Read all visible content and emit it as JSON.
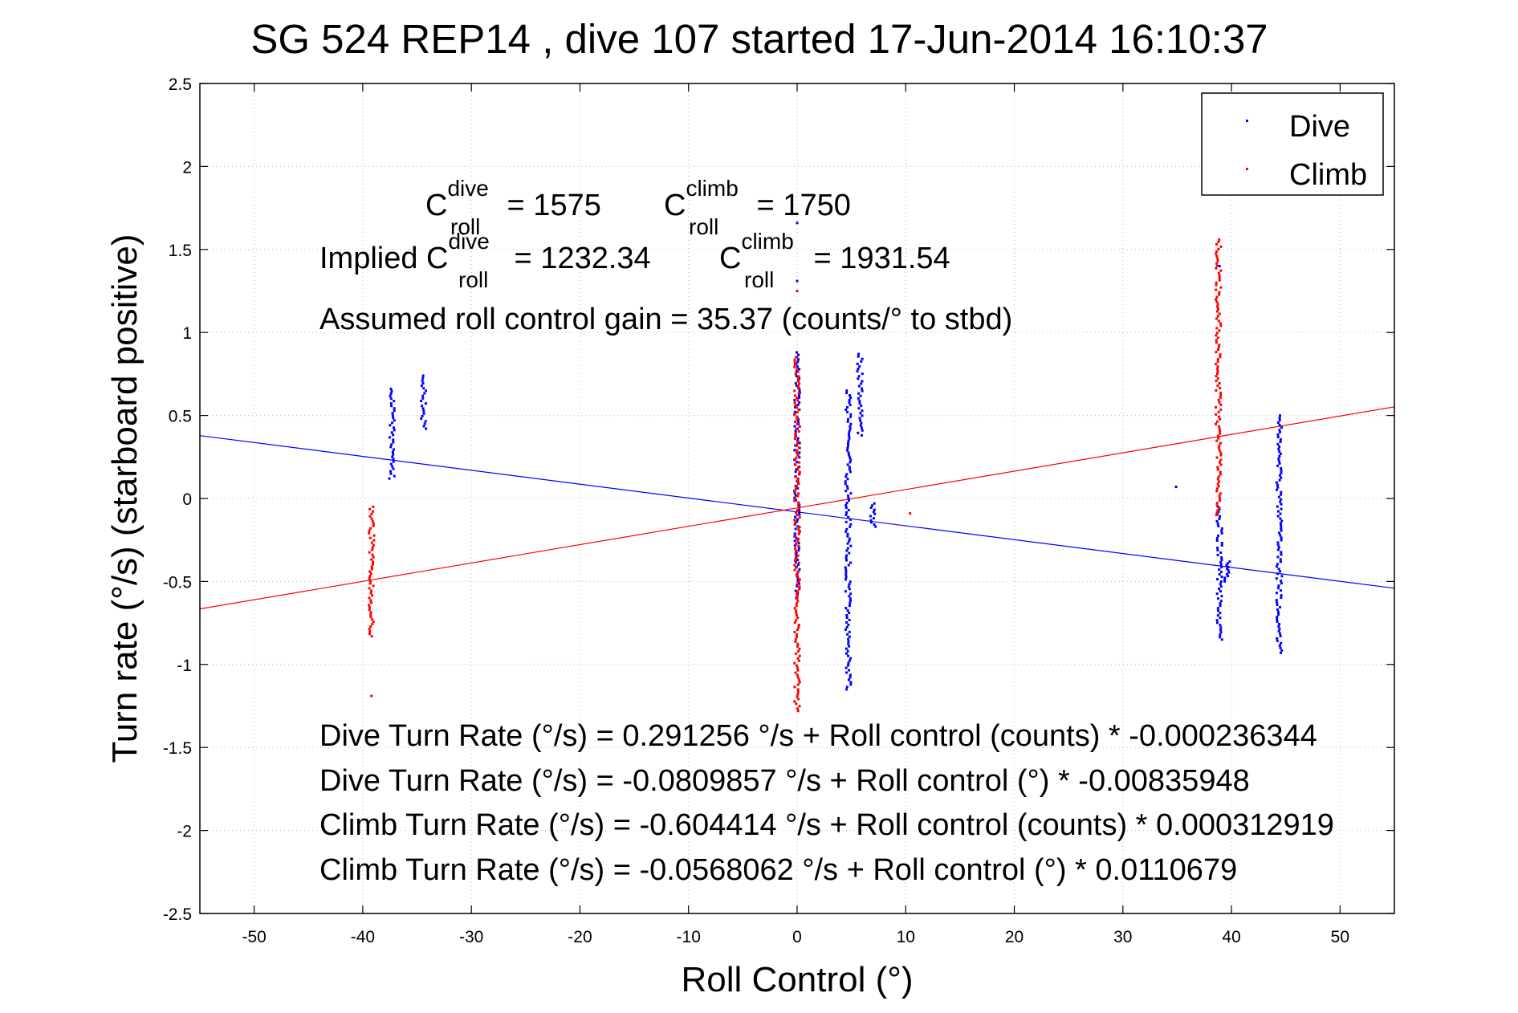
{
  "chart_data": {
    "type": "scatter",
    "title": "SG 524   REP14  , dive 107 started 17-Jun-2014 16:10:37",
    "xlabel": "Roll Control (°)",
    "ylabel": "Turn rate (°/s)  (starboard positive)",
    "xlim": [
      -55,
      55
    ],
    "ylim": [
      -2.5,
      2.5
    ],
    "x_ticks": [
      -50,
      -40,
      -30,
      -20,
      -10,
      0,
      10,
      20,
      30,
      40,
      50
    ],
    "y_ticks": [
      -2.5,
      -2,
      -1.5,
      -1,
      -0.5,
      0,
      0.5,
      1,
      1.5,
      2,
      2.5
    ],
    "grid": "on (dotted)",
    "legend_position": "top-right",
    "colors": {
      "dive": "#0000ff",
      "climb": "#ff0000"
    },
    "series": [
      {
        "name": "Dive",
        "color": "#0000ff",
        "marker": "point",
        "clusters": [
          {
            "x": -37.3,
            "y_min": 0.12,
            "y_max": 0.66
          },
          {
            "x": -34.4,
            "y_min": 0.42,
            "y_max": 0.74
          },
          {
            "x": 0.0,
            "y_min": -0.6,
            "y_max": 0.88
          },
          {
            "x": 4.7,
            "y_min": -1.15,
            "y_max": 0.65
          },
          {
            "x": 5.8,
            "y_min": 0.38,
            "y_max": 0.87
          },
          {
            "x": 7.0,
            "y_min": -0.17,
            "y_max": -0.03
          },
          {
            "x": 38.9,
            "y_min": -0.85,
            "y_max": -0.05
          },
          {
            "x": 39.6,
            "y_min": -0.5,
            "y_max": -0.38
          },
          {
            "x": 44.4,
            "y_min": -0.93,
            "y_max": 0.5
          }
        ],
        "isolated_points": [
          [
            0.0,
            1.66
          ],
          [
            0.0,
            1.31
          ],
          [
            34.9,
            0.07
          ],
          [
            38.9,
            1.4
          ]
        ]
      },
      {
        "name": "Climb",
        "color": "#ff0000",
        "marker": "point",
        "clusters": [
          {
            "x": -39.2,
            "y_min": -0.83,
            "y_max": -0.05
          },
          {
            "x": 0.0,
            "y_min": -1.28,
            "y_max": 0.85
          },
          {
            "x": 38.8,
            "y_min": -0.1,
            "y_max": 1.56
          }
        ],
        "isolated_points": [
          [
            -39.2,
            -1.19
          ],
          [
            0.0,
            1.25
          ],
          [
            10.4,
            -0.09
          ]
        ]
      }
    ],
    "fit_lines": [
      {
        "series": "Dive",
        "color": "#0000ff",
        "intercept": -0.0809857,
        "slope": -0.00835948
      },
      {
        "series": "Climb",
        "color": "#ff0000",
        "intercept": -0.0568062,
        "slope": 0.0110679
      }
    ],
    "annotations": {
      "c_dive_base": "C",
      "c_dive_sup": "dive",
      "c_dive_sub": "roll",
      "c_dive_value": " = 1575",
      "c_climb_base": "C",
      "c_climb_sup": "climb",
      "c_climb_sub": "roll",
      "c_climb_value": " = 1750",
      "implied_prefix": "Implied C",
      "implied_dive_sup": "dive",
      "implied_dive_sub": "roll",
      "implied_dive_value": " = 1232.34",
      "implied_climb_base": "C",
      "implied_climb_sup": "climb",
      "implied_climb_sub": "roll",
      "implied_climb_value": " = 1931.54",
      "gain": "Assumed roll control gain = 35.37 (counts/° to stbd)",
      "eq_dive_counts": "Dive Turn Rate (°/s) = 0.291256 °/s + Roll control (counts) * -0.000236344",
      "eq_dive_deg": "Dive Turn Rate (°/s) = -0.0809857 °/s + Roll control (°) * -0.00835948",
      "eq_climb_counts": "Climb Turn Rate (°/s) = -0.604414 °/s + Roll control (counts) * 0.000312919",
      "eq_climb_deg": "Climb Turn Rate (°/s) = -0.0568062 °/s + Roll control (°) * 0.0110679"
    }
  }
}
